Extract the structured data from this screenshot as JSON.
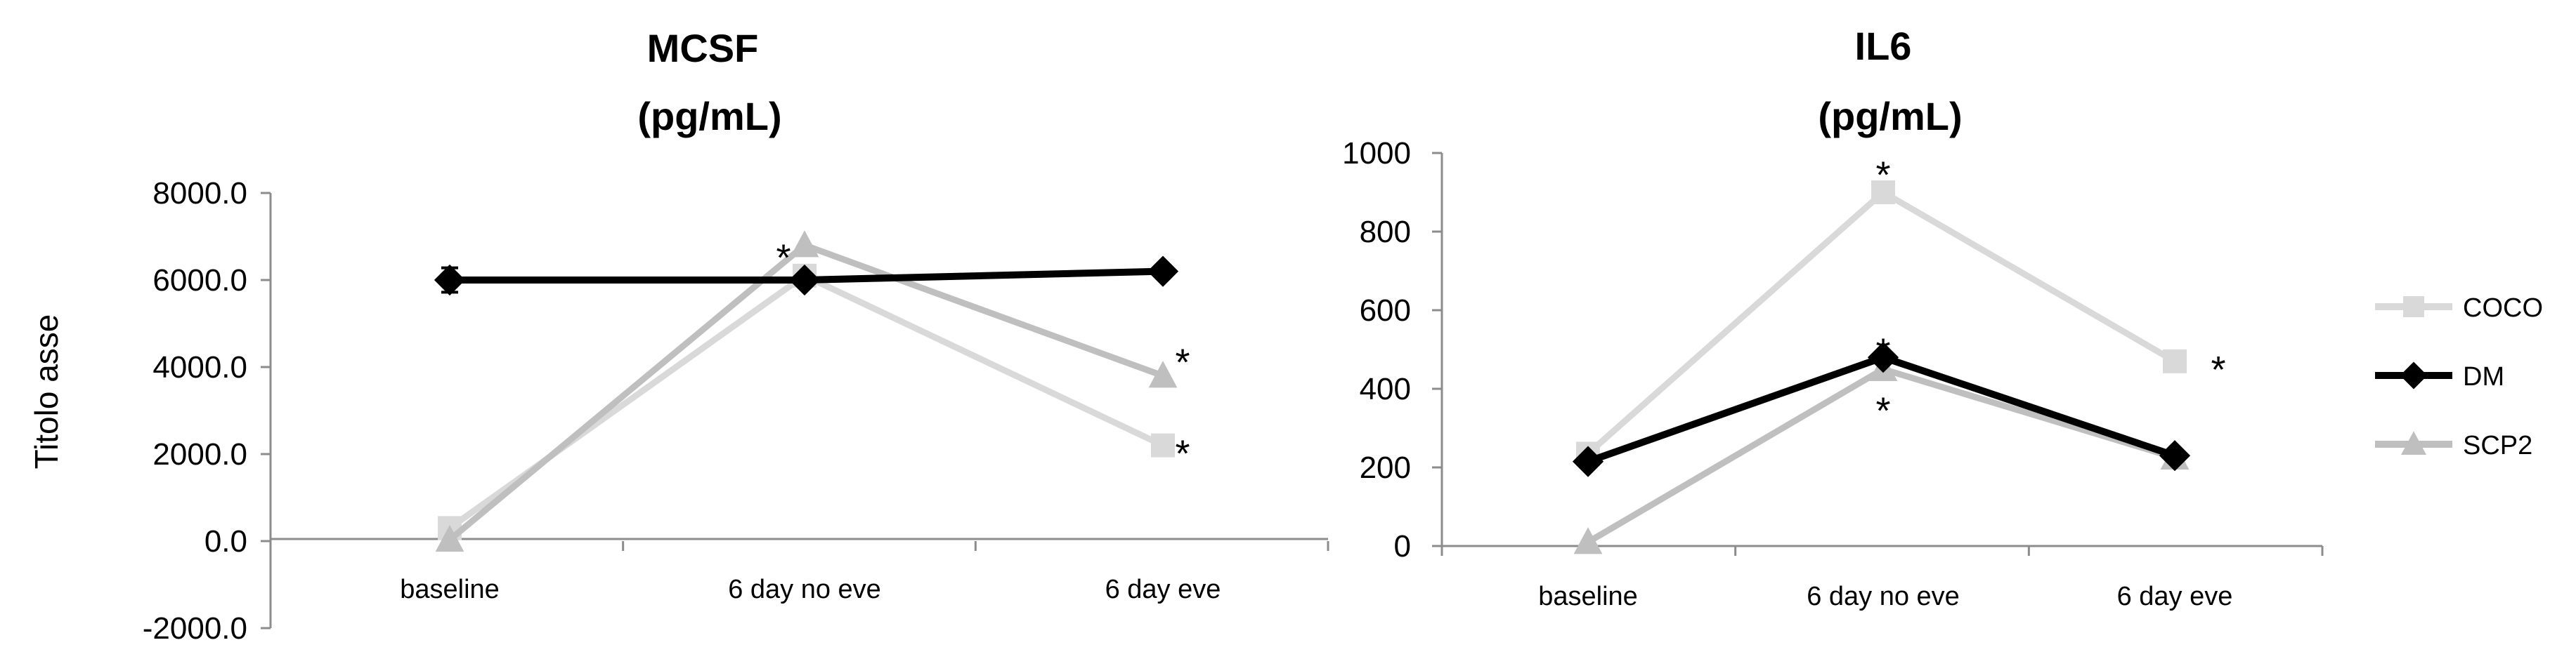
{
  "chart_data": [
    {
      "type": "line",
      "title_line1": "MCSF",
      "title_line2": "(pg/mL)",
      "ylabel": "Titolo asse",
      "xlabel": "",
      "categories": [
        "baseline",
        "6 day no eve",
        "6 day eve"
      ],
      "ylim": [
        -2000,
        8000
      ],
      "yticks": [
        -2000,
        0,
        2000,
        4000,
        6000,
        8000
      ],
      "ytick_labels": [
        "-2000.0",
        "0.0",
        "2000.0",
        "4000.0",
        "6000.0",
        "8000.0"
      ],
      "series": [
        {
          "name": "COCO",
          "values": [
            300,
            6100,
            2200
          ],
          "color": "#d9d9d9",
          "marker": "square"
        },
        {
          "name": "SCP2",
          "values": [
            30,
            6800,
            3800
          ],
          "color": "#bfbfbf",
          "marker": "triangle"
        },
        {
          "name": "DM",
          "values": [
            6000,
            6000,
            6200
          ],
          "color": "#000000",
          "marker": "diamond",
          "errors": [
            280,
            0,
            0
          ]
        }
      ],
      "annotations": [
        {
          "text": "*",
          "category": 1,
          "value": 6700
        },
        {
          "text": "*",
          "category": 2,
          "value": 4300
        },
        {
          "text": "*",
          "category": 2,
          "value": 2200
        }
      ]
    },
    {
      "type": "line",
      "title_line1": "IL6",
      "title_line2": "(pg/mL)",
      "categories": [
        "baseline",
        "6 day no eve",
        "6 day eve"
      ],
      "ylim": [
        0,
        1000
      ],
      "yticks": [
        0,
        200,
        400,
        600,
        800,
        1000
      ],
      "ytick_labels": [
        "0",
        "200",
        "400",
        "600",
        "800",
        "1000"
      ],
      "series": [
        {
          "name": "COCO",
          "values": [
            235,
            900,
            470
          ],
          "color": "#d9d9d9",
          "marker": "square"
        },
        {
          "name": "SCP2",
          "values": [
            10,
            450,
            225
          ],
          "color": "#bfbfbf",
          "marker": "triangle"
        },
        {
          "name": "DM",
          "values": [
            215,
            480,
            230
          ],
          "color": "#000000",
          "marker": "diamond"
        }
      ],
      "annotations": [
        {
          "text": "*",
          "category": 1,
          "value": 965
        },
        {
          "text": "*",
          "category": 1,
          "value": 515
        },
        {
          "text": "*",
          "category": 1,
          "value": 365
        },
        {
          "text": "*",
          "category": 2,
          "value": 470
        }
      ]
    }
  ],
  "legend": {
    "position": "right",
    "items": [
      {
        "name": "COCO",
        "color": "#d9d9d9",
        "marker": "square"
      },
      {
        "name": "DM",
        "color": "#000000",
        "marker": "diamond"
      },
      {
        "name": "SCP2",
        "color": "#bfbfbf",
        "marker": "triangle"
      }
    ]
  }
}
